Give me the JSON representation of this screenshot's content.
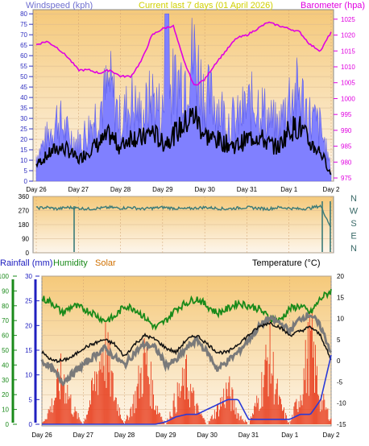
{
  "colors": {
    "wind_label": "#7070d0",
    "title": "#d0d000",
    "barometer": "#e000e0",
    "wind_fill": "#8080ff",
    "wind_avg": "#000000",
    "direction": "#3a7a78",
    "rain_axis": "#2020c0",
    "humidity": "#1a8a1a",
    "solar": "#d07000",
    "temp_line": "#7a7a7a",
    "dew_line": "#111111",
    "rain_line": "#2a3ad8",
    "solar_fill": "#e84020",
    "gradient_top": "#f5c97a",
    "gradient_bottom": "#fdf6ec"
  },
  "top_panel": {
    "title": "Current last 7 days (01 April 2026)",
    "left_label": "Windspeed (kph)",
    "right_label": "Barometer (hpa)",
    "left_ticks": [
      "0",
      "5",
      "10",
      "15",
      "20",
      "25",
      "30",
      "35",
      "40",
      "45",
      "50",
      "55",
      "60",
      "65",
      "70",
      "75",
      "80"
    ],
    "right_ticks": [
      "975",
      "980",
      "985",
      "990",
      "995",
      "1000",
      "1005",
      "1010",
      "1015",
      "1020",
      "1025"
    ]
  },
  "middle_panel": {
    "left_ticks": [
      "0",
      "90",
      "180",
      "270",
      "360"
    ],
    "compass": [
      "N",
      "W",
      "S",
      "E",
      "N"
    ]
  },
  "bottom_panel": {
    "rain_label": "Rainfall (mm)",
    "humidity_label": "Humidity",
    "solar_label": "Solar",
    "temp_label": "Temperature (°C)",
    "humidity_ticks": [
      "0",
      "10",
      "20",
      "30",
      "40",
      "50",
      "60",
      "70",
      "80",
      "90",
      "100"
    ],
    "rain_ticks": [
      "0",
      "5",
      "10",
      "15",
      "20",
      "25",
      "30"
    ],
    "temp_ticks": [
      "-15",
      "-10",
      "-5",
      "0",
      "5",
      "10",
      "15",
      "20"
    ]
  },
  "day_labels": [
    "Day 26",
    "Day 27",
    "Day 28",
    "Day 29",
    "Day 30",
    "Day 31",
    "Day 1",
    "Day 2"
  ],
  "chart_data": [
    {
      "type": "line",
      "title": "Current last 7 days (01 April 2026)",
      "xlabel": "",
      "ylabel": "Windspeed (kph)",
      "y2label": "Barometer (hpa)",
      "ylim": [
        0,
        82
      ],
      "y2lim": [
        974,
        1028
      ],
      "categories": [
        "Day 26",
        "Day 27",
        "Day 28",
        "Day 29",
        "Day 30",
        "Day 31",
        "Day 1",
        "Day 2"
      ],
      "x": [
        26.0,
        26.25,
        26.5,
        26.75,
        27.0,
        27.25,
        27.5,
        27.75,
        28.0,
        28.25,
        28.5,
        28.75,
        29.0,
        29.25,
        29.5,
        29.75,
        30.0,
        30.25,
        30.5,
        30.75,
        31.0,
        31.25,
        31.5,
        31.75,
        32.0,
        32.25,
        32.5,
        32.75,
        33.0
      ],
      "series": [
        {
          "values": [
            12,
            20,
            30,
            22,
            18,
            25,
            35,
            45,
            28,
            38,
            30,
            40,
            32,
            45,
            50,
            60,
            40,
            38,
            30,
            28,
            35,
            38,
            30,
            25,
            40,
            42,
            30,
            25,
            5
          ]
        },
        {
          "values": [
            8,
            12,
            16,
            15,
            10,
            15,
            18,
            22,
            16,
            22,
            20,
            24,
            18,
            22,
            27,
            32,
            22,
            20,
            18,
            17,
            20,
            22,
            18,
            16,
            25,
            26,
            18,
            14,
            3
          ]
        },
        {
          "values": [
            1017,
            1018,
            1016,
            1013,
            1009,
            1009,
            1008,
            1009,
            1007,
            1007,
            1012,
            1020,
            1022,
            1023,
            1012,
            1004,
            1006,
            1011,
            1015,
            1019,
            1020,
            1022,
            1024,
            1023,
            1022,
            1021,
            1017,
            1015,
            1021
          ]
        }
      ]
    },
    {
      "type": "line",
      "title": "",
      "xlabel": "",
      "ylabel": "",
      "ylim": [
        0,
        360
      ],
      "x": [
        26.0,
        26.25,
        26.5,
        26.75,
        27.0,
        27.25,
        27.5,
        27.75,
        28.0,
        28.25,
        28.5,
        28.75,
        29.0,
        29.25,
        29.5,
        29.75,
        30.0,
        30.25,
        30.5,
        30.75,
        31.0,
        31.25,
        31.5,
        31.75,
        32.0,
        32.25,
        32.5,
        32.75,
        33.0
      ],
      "series": [
        {
          "values": [
            285,
            290,
            280,
            290,
            285,
            280,
            285,
            290,
            285,
            290,
            280,
            285,
            290,
            285,
            280,
            285,
            290,
            285,
            280,
            285,
            290,
            285,
            280,
            290,
            285,
            280,
            285,
            300,
            160
          ]
        }
      ]
    },
    {
      "type": "line",
      "title": "",
      "xlabel": "",
      "ylabel": "Rainfall (mm)",
      "y2label": "Temperature (°C)",
      "ylim": [
        0,
        30
      ],
      "y2lim": [
        -15,
        20
      ],
      "x": [
        26.0,
        26.25,
        26.5,
        26.75,
        27.0,
        27.25,
        27.5,
        27.75,
        28.0,
        28.25,
        28.5,
        28.75,
        29.0,
        29.25,
        29.5,
        29.75,
        30.0,
        30.25,
        30.5,
        30.75,
        31.0,
        31.25,
        31.5,
        31.75,
        32.0,
        32.25,
        32.5,
        32.75,
        33.0
      ],
      "series": [
        {
          "name": "Humidity",
          "values": [
            85,
            82,
            75,
            80,
            78,
            75,
            70,
            72,
            80,
            78,
            72,
            65,
            70,
            78,
            82,
            85,
            80,
            75,
            78,
            82,
            80,
            78,
            72,
            70,
            78,
            80,
            75,
            85,
            90
          ]
        },
        {
          "values": [
            0,
            -2,
            -5,
            -3,
            -1,
            1,
            3,
            1,
            -1,
            2,
            4,
            3,
            -1,
            0,
            3,
            5,
            2,
            -2,
            0,
            2,
            5,
            8,
            10,
            9,
            7,
            10,
            11,
            8,
            2
          ]
        },
        {
          "values": [
            2,
            0,
            0,
            1,
            3,
            4,
            5,
            4,
            1,
            4,
            6,
            5,
            3,
            2,
            5,
            6,
            4,
            2,
            2,
            4,
            6,
            8,
            9,
            8,
            6,
            7,
            8,
            6,
            0
          ]
        },
        {
          "name": "Solar",
          "values": [
            0,
            4,
            10,
            3,
            0,
            7,
            16,
            6,
            0,
            5,
            13,
            4,
            0,
            5,
            9,
            3,
            0,
            3,
            7,
            2,
            0,
            5,
            14,
            4,
            0,
            6,
            16,
            5,
            1
          ]
        },
        {
          "values": [
            0,
            0,
            0,
            0,
            0,
            0,
            0,
            0,
            0,
            0,
            0,
            0,
            0.5,
            1.5,
            2,
            2,
            3,
            4,
            5,
            5,
            1,
            1,
            1,
            1,
            1,
            2,
            2,
            5,
            14
          ]
        }
      ]
    }
  ]
}
